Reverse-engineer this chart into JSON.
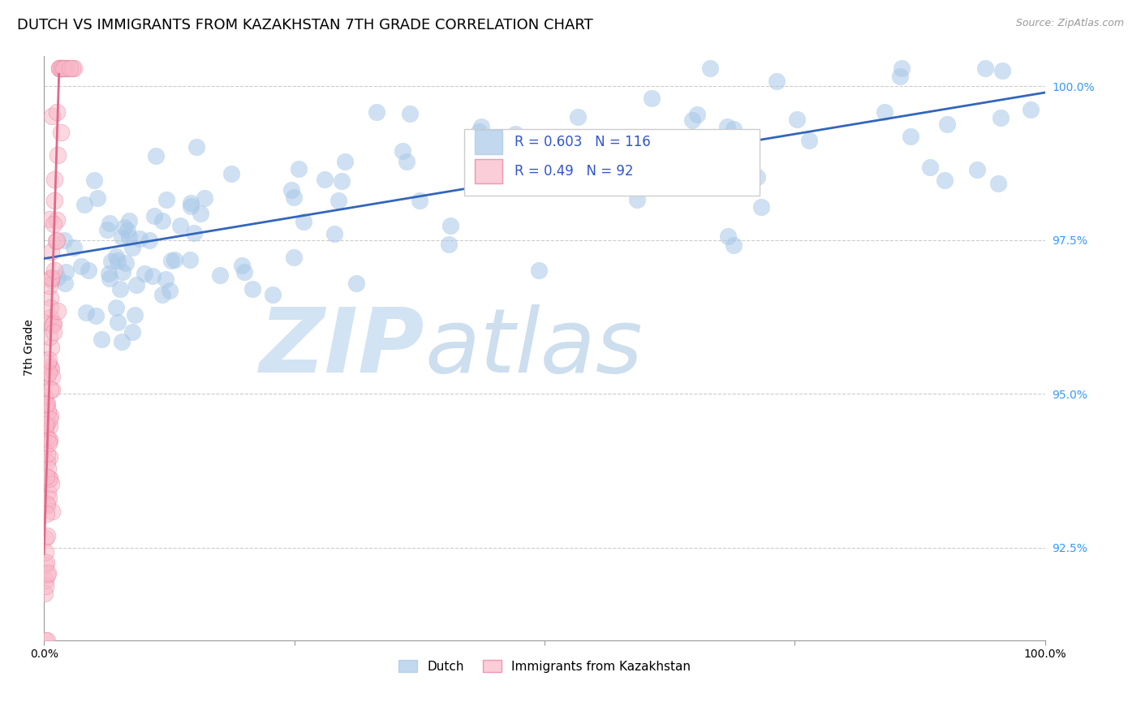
{
  "title": "DUTCH VS IMMIGRANTS FROM KAZAKHSTAN 7TH GRADE CORRELATION CHART",
  "source": "Source: ZipAtlas.com",
  "ylabel": "7th Grade",
  "xlim": [
    0.0,
    1.0
  ],
  "ylim": [
    0.91,
    1.005
  ],
  "yticks": [
    0.925,
    0.95,
    0.975,
    1.0
  ],
  "ytick_labels": [
    "92.5%",
    "95.0%",
    "97.5%",
    "100.0%"
  ],
  "legend_dutch": "Dutch",
  "legend_imm": "Immigrants from Kazakhstan",
  "R_dutch": 0.603,
  "N_dutch": 116,
  "R_imm": 0.49,
  "N_imm": 92,
  "blue_color": "#a8c8e8",
  "blue_edge_color": "#a8c8e8",
  "blue_line_color": "#3366bb",
  "pink_color": "#f8b8c8",
  "pink_edge_color": "#e87898",
  "pink_line_color": "#e06888",
  "grid_color": "#cccccc",
  "background_color": "#ffffff",
  "title_fontsize": 13,
  "axis_label_fontsize": 10,
  "tick_fontsize": 10,
  "right_tick_color": "#3399ff",
  "source_color": "#999999",
  "legend_text_color": "#3355cc",
  "watermark_zip_color": "#c0d8ee",
  "watermark_atlas_color": "#b8d0e8"
}
